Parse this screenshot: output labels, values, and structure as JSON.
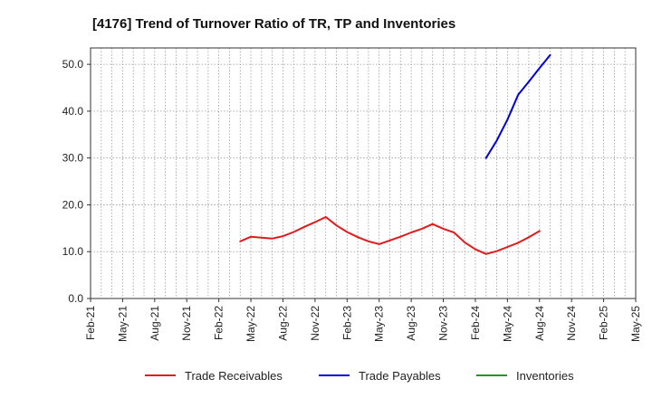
{
  "chart_data": {
    "type": "line",
    "title": "[4176]  Trend of Turnover Ratio of TR, TP and Inventories",
    "xlabel": "",
    "ylabel": "",
    "ylim": [
      0,
      53.5
    ],
    "yticks": [
      "0.0",
      "10.0",
      "20.0",
      "30.0",
      "40.0",
      "50.0"
    ],
    "xticks": [
      "Feb-21",
      "May-21",
      "Aug-21",
      "Nov-21",
      "Feb-22",
      "May-22",
      "Aug-22",
      "Nov-22",
      "Feb-23",
      "May-23",
      "Aug-23",
      "Nov-23",
      "Feb-24",
      "May-24",
      "Aug-24",
      "Nov-24",
      "Feb-25",
      "May-25"
    ],
    "grid": true,
    "legend_position": "bottom",
    "series": [
      {
        "name": "Trade Receivables",
        "color": "#e31a1c",
        "points": [
          [
            "2022-04",
            12.2
          ],
          [
            "2022-05",
            13.2
          ],
          [
            "2022-06",
            13.0
          ],
          [
            "2022-07",
            12.8
          ],
          [
            "2022-08",
            13.3
          ],
          [
            "2022-09",
            14.2
          ],
          [
            "2022-10",
            15.3
          ],
          [
            "2022-11",
            16.3
          ],
          [
            "2022-12",
            17.4
          ],
          [
            "2023-01",
            15.6
          ],
          [
            "2023-02",
            14.2
          ],
          [
            "2023-03",
            13.1
          ],
          [
            "2023-04",
            12.2
          ],
          [
            "2023-05",
            11.6
          ],
          [
            "2023-06",
            12.4
          ],
          [
            "2023-07",
            13.2
          ],
          [
            "2023-08",
            14.1
          ],
          [
            "2023-09",
            14.9
          ],
          [
            "2023-10",
            15.9
          ],
          [
            "2023-11",
            14.9
          ],
          [
            "2023-12",
            14.1
          ],
          [
            "2024-01",
            12.0
          ],
          [
            "2024-02",
            10.5
          ],
          [
            "2024-03",
            9.5
          ],
          [
            "2024-04",
            10.1
          ],
          [
            "2024-05",
            11.0
          ],
          [
            "2024-06",
            11.9
          ],
          [
            "2024-07",
            13.1
          ],
          [
            "2024-08",
            14.4
          ]
        ]
      },
      {
        "name": "Trade Payables",
        "color": "#0000e0",
        "points": [
          [
            "2024-03",
            30.0
          ],
          [
            "2024-04",
            33.7
          ],
          [
            "2024-05",
            38.2
          ],
          [
            "2024-06",
            43.5
          ],
          [
            "2024-07",
            46.3
          ],
          [
            "2024-08",
            49.2
          ],
          [
            "2024-09",
            52.0
          ]
        ]
      },
      {
        "name": "Inventories",
        "color": "#1a9a1a",
        "points": []
      }
    ]
  }
}
